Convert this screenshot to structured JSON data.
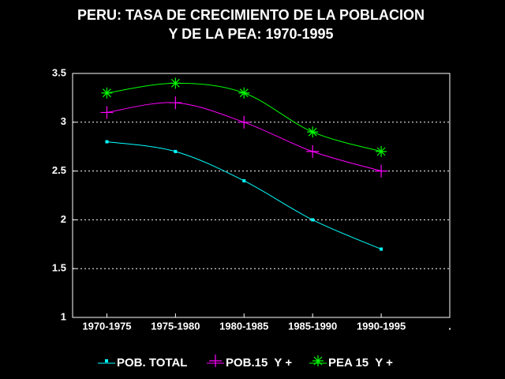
{
  "chart_data": {
    "type": "line",
    "title": [
      "PERU: TASA DE CRECIMIENTO DE LA POBLACION",
      "Y DE LA PEA: 1970-1995"
    ],
    "categories": [
      "1970-1975",
      "1975-1980",
      "1980-1985",
      "1985-1990",
      "1990-1995",
      "."
    ],
    "series": [
      {
        "name": "POB. TOTAL",
        "color": "#00ffff",
        "marker": "square",
        "values": [
          2.8,
          2.7,
          2.4,
          2.0,
          1.7,
          null
        ]
      },
      {
        "name": "POB.15  Y +",
        "color": "#ff00ff",
        "marker": "plus",
        "values": [
          3.1,
          3.2,
          3.0,
          2.7,
          2.5,
          null
        ]
      },
      {
        "name": "PEA 15  Y +",
        "color": "#00ff00",
        "marker": "asterisk",
        "values": [
          3.3,
          3.4,
          3.3,
          2.9,
          2.7,
          null
        ]
      }
    ],
    "ylim": [
      1,
      3.5
    ],
    "yticks": [
      1,
      1.5,
      2,
      2.5,
      3,
      3.5
    ],
    "grid": true,
    "legend": "bottom"
  }
}
